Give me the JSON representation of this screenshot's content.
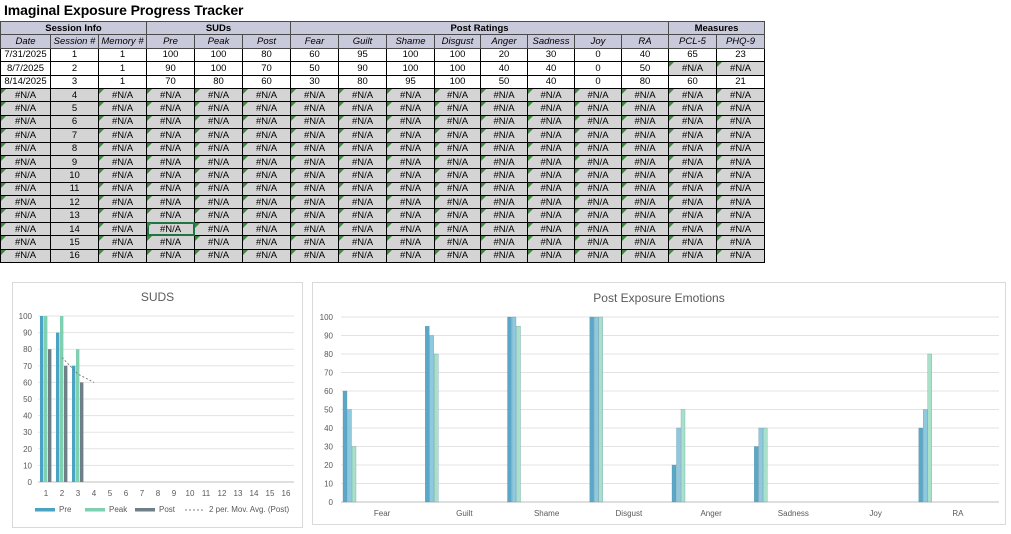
{
  "title": "Imaginal Exposure Progress Tracker",
  "groups": [
    {
      "label": "Session Info",
      "span": 3
    },
    {
      "label": "SUDs",
      "span": 3
    },
    {
      "label": "Post Ratings",
      "span": 8
    },
    {
      "label": "Measures",
      "span": 2
    }
  ],
  "columns": [
    "Date",
    "Session #",
    "Memory #",
    "Pre",
    "Peak",
    "Post",
    "Fear",
    "Guilt",
    "Shame",
    "Disgust",
    "Anger",
    "Sadness",
    "Joy",
    "RA",
    "PCL-5",
    "PHQ-9"
  ],
  "rows": [
    [
      "7/31/2025",
      "1",
      "1",
      "100",
      "100",
      "80",
      "60",
      "95",
      "100",
      "100",
      "20",
      "30",
      "0",
      "40",
      "65",
      "23"
    ],
    [
      "8/7/2025",
      "2",
      "1",
      "90",
      "100",
      "70",
      "50",
      "90",
      "100",
      "100",
      "40",
      "40",
      "0",
      "50",
      "#N/A",
      "#N/A"
    ],
    [
      "8/14/2025",
      "3",
      "1",
      "70",
      "80",
      "60",
      "30",
      "80",
      "95",
      "100",
      "50",
      "40",
      "0",
      "80",
      "60",
      "21"
    ],
    [
      "#N/A",
      "4",
      "#N/A",
      "#N/A",
      "#N/A",
      "#N/A",
      "#N/A",
      "#N/A",
      "#N/A",
      "#N/A",
      "#N/A",
      "#N/A",
      "#N/A",
      "#N/A",
      "#N/A",
      "#N/A"
    ],
    [
      "#N/A",
      "5",
      "#N/A",
      "#N/A",
      "#N/A",
      "#N/A",
      "#N/A",
      "#N/A",
      "#N/A",
      "#N/A",
      "#N/A",
      "#N/A",
      "#N/A",
      "#N/A",
      "#N/A",
      "#N/A"
    ],
    [
      "#N/A",
      "6",
      "#N/A",
      "#N/A",
      "#N/A",
      "#N/A",
      "#N/A",
      "#N/A",
      "#N/A",
      "#N/A",
      "#N/A",
      "#N/A",
      "#N/A",
      "#N/A",
      "#N/A",
      "#N/A"
    ],
    [
      "#N/A",
      "7",
      "#N/A",
      "#N/A",
      "#N/A",
      "#N/A",
      "#N/A",
      "#N/A",
      "#N/A",
      "#N/A",
      "#N/A",
      "#N/A",
      "#N/A",
      "#N/A",
      "#N/A",
      "#N/A"
    ],
    [
      "#N/A",
      "8",
      "#N/A",
      "#N/A",
      "#N/A",
      "#N/A",
      "#N/A",
      "#N/A",
      "#N/A",
      "#N/A",
      "#N/A",
      "#N/A",
      "#N/A",
      "#N/A",
      "#N/A",
      "#N/A"
    ],
    [
      "#N/A",
      "9",
      "#N/A",
      "#N/A",
      "#N/A",
      "#N/A",
      "#N/A",
      "#N/A",
      "#N/A",
      "#N/A",
      "#N/A",
      "#N/A",
      "#N/A",
      "#N/A",
      "#N/A",
      "#N/A"
    ],
    [
      "#N/A",
      "10",
      "#N/A",
      "#N/A",
      "#N/A",
      "#N/A",
      "#N/A",
      "#N/A",
      "#N/A",
      "#N/A",
      "#N/A",
      "#N/A",
      "#N/A",
      "#N/A",
      "#N/A",
      "#N/A"
    ],
    [
      "#N/A",
      "11",
      "#N/A",
      "#N/A",
      "#N/A",
      "#N/A",
      "#N/A",
      "#N/A",
      "#N/A",
      "#N/A",
      "#N/A",
      "#N/A",
      "#N/A",
      "#N/A",
      "#N/A",
      "#N/A"
    ],
    [
      "#N/A",
      "12",
      "#N/A",
      "#N/A",
      "#N/A",
      "#N/A",
      "#N/A",
      "#N/A",
      "#N/A",
      "#N/A",
      "#N/A",
      "#N/A",
      "#N/A",
      "#N/A",
      "#N/A",
      "#N/A"
    ],
    [
      "#N/A",
      "13",
      "#N/A",
      "#N/A",
      "#N/A",
      "#N/A",
      "#N/A",
      "#N/A",
      "#N/A",
      "#N/A",
      "#N/A",
      "#N/A",
      "#N/A",
      "#N/A",
      "#N/A",
      "#N/A"
    ],
    [
      "#N/A",
      "14",
      "#N/A",
      "#N/A",
      "#N/A",
      "#N/A",
      "#N/A",
      "#N/A",
      "#N/A",
      "#N/A",
      "#N/A",
      "#N/A",
      "#N/A",
      "#N/A",
      "#N/A",
      "#N/A"
    ],
    [
      "#N/A",
      "15",
      "#N/A",
      "#N/A",
      "#N/A",
      "#N/A",
      "#N/A",
      "#N/A",
      "#N/A",
      "#N/A",
      "#N/A",
      "#N/A",
      "#N/A",
      "#N/A",
      "#N/A",
      "#N/A"
    ],
    [
      "#N/A",
      "16",
      "#N/A",
      "#N/A",
      "#N/A",
      "#N/A",
      "#N/A",
      "#N/A",
      "#N/A",
      "#N/A",
      "#N/A",
      "#N/A",
      "#N/A",
      "#N/A",
      "#N/A",
      "#N/A"
    ]
  ],
  "colors": {
    "header_bg": "#c9c9dc",
    "na_bg": "#d4d4d4",
    "error_triangle": "#3a8a3a",
    "series_pre": "#4aa3c3",
    "series_peak": "#7fcfb1",
    "series_post": "#6f7f88",
    "emotion_1": "#5aa7c8",
    "emotion_2": "#8ec9df",
    "emotion_3": "#a8e0c9",
    "selection": "#217346"
  },
  "icons": {
    "error_warning": "warning-icon"
  },
  "chart_data": [
    {
      "type": "bar",
      "title": "SUDS",
      "categories": [
        "1",
        "2",
        "3",
        "4",
        "5",
        "6",
        "7",
        "8",
        "9",
        "10",
        "11",
        "12",
        "13",
        "14",
        "15",
        "16"
      ],
      "series": [
        {
          "name": "Pre",
          "values": [
            100,
            90,
            70,
            null,
            null,
            null,
            null,
            null,
            null,
            null,
            null,
            null,
            null,
            null,
            null,
            null
          ]
        },
        {
          "name": "Peak",
          "values": [
            100,
            100,
            80,
            null,
            null,
            null,
            null,
            null,
            null,
            null,
            null,
            null,
            null,
            null,
            null,
            null
          ]
        },
        {
          "name": "Post",
          "values": [
            80,
            70,
            60,
            null,
            null,
            null,
            null,
            null,
            null,
            null,
            null,
            null,
            null,
            null,
            null,
            null
          ]
        }
      ],
      "trendline": {
        "name": "2 per. Mov. Avg. (Post)",
        "values": [
          null,
          75,
          65,
          60
        ]
      },
      "ylim": [
        0,
        100
      ],
      "yticks": [
        0,
        10,
        20,
        30,
        40,
        50,
        60,
        70,
        80,
        90,
        100
      ],
      "legend": "bottom",
      "grid": true
    },
    {
      "type": "bar",
      "title": "Post Exposure Emotions",
      "categories": [
        "Fear",
        "Guilt",
        "Shame",
        "Disgust",
        "Anger",
        "Sadness",
        "Joy",
        "RA"
      ],
      "series": [
        {
          "values": [
            60,
            95,
            100,
            100,
            20,
            30,
            0,
            40
          ]
        },
        {
          "values": [
            50,
            90,
            100,
            100,
            40,
            40,
            0,
            50
          ]
        },
        {
          "values": [
            30,
            80,
            95,
            100,
            50,
            40,
            0,
            80
          ]
        }
      ],
      "ylim": [
        0,
        100
      ],
      "yticks": [
        0,
        10,
        20,
        30,
        40,
        50,
        60,
        70,
        80,
        90,
        100
      ],
      "legend": "none",
      "grid": true
    }
  ]
}
